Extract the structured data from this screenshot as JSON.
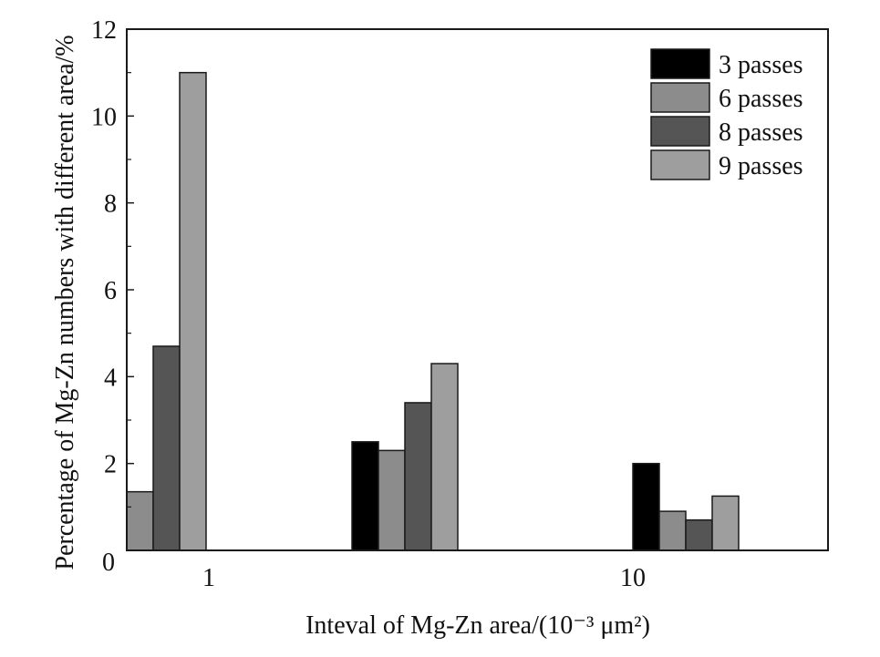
{
  "chart_data": {
    "type": "bar",
    "title": "",
    "xlabel": "Inteval of Mg-Zn area/(10⁻³ μm²)",
    "ylabel": "Percentage of Mg-Zn numbers with different area/%",
    "ylim": [
      0,
      12
    ],
    "yticks": [
      0,
      2,
      4,
      6,
      8,
      10,
      12
    ],
    "x_tick_labels": [
      "1",
      "10"
    ],
    "legend_position": "top-right",
    "grid": false,
    "groups": [
      {
        "label": "1",
        "bars": [
          {
            "series": "6 passes",
            "value": 1.35
          },
          {
            "series": "8 passes",
            "value": 4.7
          },
          {
            "series": "9 passes",
            "value": 11.0
          }
        ]
      },
      {
        "label": "",
        "bars": [
          {
            "series": "3 passes",
            "value": 2.5
          },
          {
            "series": "6 passes",
            "value": 2.3
          },
          {
            "series": "8 passes",
            "value": 3.4
          },
          {
            "series": "9 passes",
            "value": 4.3
          }
        ]
      },
      {
        "label": "",
        "bars": [
          {
            "series": "3 passes",
            "value": 2.0
          },
          {
            "series": "6 passes",
            "value": 0.9
          },
          {
            "series": "8 passes",
            "value": 0.7
          },
          {
            "series": "9 passes",
            "value": 1.25
          }
        ]
      }
    ],
    "series": [
      {
        "name": "3 passes",
        "color": "#000000"
      },
      {
        "name": "6 passes",
        "color": "#8c8c8c"
      },
      {
        "name": "8 passes",
        "color": "#555555"
      },
      {
        "name": "9 passes",
        "color": "#9e9e9e"
      }
    ]
  }
}
